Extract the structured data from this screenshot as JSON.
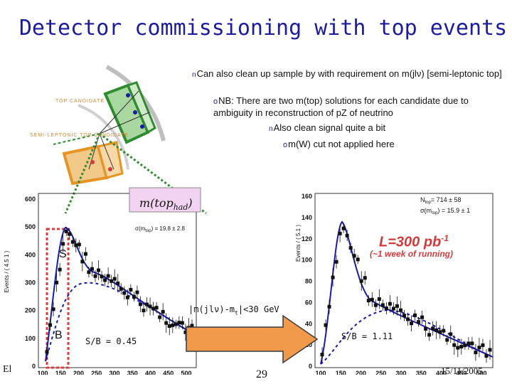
{
  "title": "Detector commissioning with top events",
  "bullets": [
    {
      "marker": "n",
      "text": "Can also clean up sample by with requirement on m(jlν) [semi-leptonic top]"
    },
    {
      "marker": "o",
      "text": "NB: There are two m(top) solutions for each candidate due to ambiguity in reconstruction of pZ of neutrino"
    },
    {
      "marker": "n",
      "text": "Also clean signal quite a bit"
    },
    {
      "marker": "o",
      "text": "m(W) cut not applied here"
    }
  ],
  "diagram": {
    "top_label": "TOP CANDIDATE",
    "semi_label": "SEMI-LEPTONIC TOP CANDIDATE"
  },
  "left_plot": {
    "label": "m(top",
    "label_sub": "had",
    "label_close": ")",
    "ylabel": "Events / ( 4.5 1 )",
    "sigma_text": "σ(m",
    "sigma_sub": "top",
    "sigma_val": ") = 19.8 ± 2.8",
    "s_label": "S",
    "b_label": "B",
    "sb": "S/B = 0.45",
    "yticks": [
      "600",
      "500",
      "400",
      "300",
      "200",
      "100",
      "0"
    ],
    "xticks": [
      "100",
      "150",
      "200",
      "250",
      "300",
      "350",
      "400",
      "450",
      "500"
    ]
  },
  "right_plot": {
    "ylabel": "Events / ( 5.1 )",
    "n_label": "N",
    "n_sub": "top",
    "n_val": "= 714 ± 58",
    "sigma_text": "σ(m",
    "sigma_sub": "top",
    "sigma_val": ") = 15.9 ± 1",
    "lumi": "L=300 pb",
    "lumi_sup": "-1",
    "lumi_note": "(~1 week of running)",
    "cut": "|m(jlν)-m",
    "cut_sub": "t",
    "cut_val": "|<30 GeV",
    "sb": "S/B = 1.11",
    "yticks": [
      "160",
      "140",
      "120",
      "100",
      "80",
      "60",
      "40",
      "20",
      "0"
    ],
    "xticks": [
      "100",
      "150",
      "200",
      "250",
      "300",
      "350",
      "400",
      "450",
      "500"
    ]
  },
  "footer": {
    "left": "El",
    "page": "29",
    "date": "15/11/2005"
  },
  "colors": {
    "title": "#1c1c9e",
    "arrow": "#f29a4c",
    "box_edge": "#3b3b3b",
    "fit": "#1a1aa8",
    "signal_box": "#e23b3b",
    "green": "#2f8c2f"
  }
}
